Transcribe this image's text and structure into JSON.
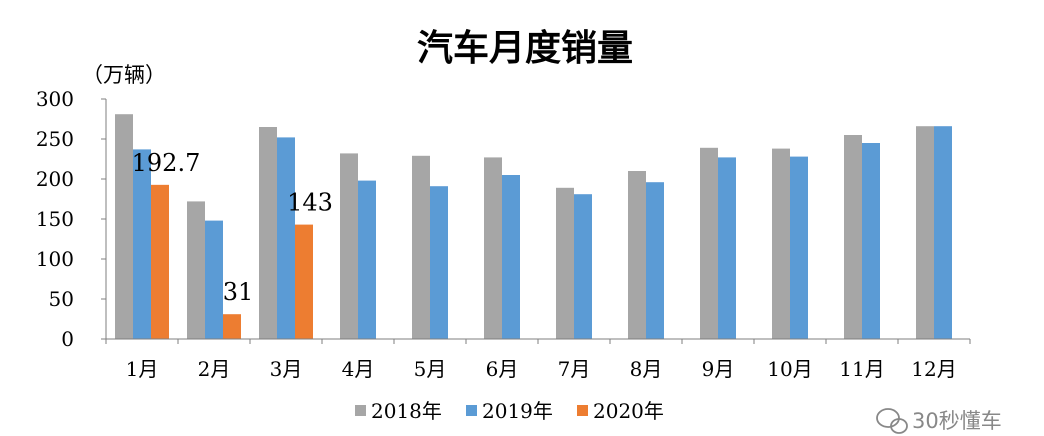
{
  "chart_data": {
    "type": "bar",
    "title": "汽车月度销量",
    "unit_label": "（万辆）",
    "categories": [
      "1月",
      "2月",
      "3月",
      "4月",
      "5月",
      "6月",
      "7月",
      "8月",
      "9月",
      "10月",
      "11月",
      "12月"
    ],
    "series": [
      {
        "name": "2018年",
        "color": "#a6a6a6",
        "values": [
          281,
          172,
          265,
          232,
          229,
          227,
          189,
          210,
          239,
          238,
          255,
          266
        ]
      },
      {
        "name": "2019年",
        "color": "#5b9bd5",
        "values": [
          237,
          148,
          252,
          198,
          191,
          205,
          181,
          196,
          227,
          228,
          245,
          266
        ]
      },
      {
        "name": "2020年",
        "color": "#ed7d31",
        "values": [
          192.7,
          31,
          143,
          null,
          null,
          null,
          null,
          null,
          null,
          null,
          null,
          null
        ]
      }
    ],
    "data_labels": [
      {
        "series": 2,
        "index": 0,
        "text": "192.7"
      },
      {
        "series": 2,
        "index": 1,
        "text": "31"
      },
      {
        "series": 2,
        "index": 2,
        "text": "143"
      }
    ],
    "ylim": [
      0,
      300
    ],
    "yticks": [
      0,
      50,
      100,
      150,
      200,
      250,
      300
    ],
    "grid": false,
    "legend_position": "bottom"
  },
  "watermark": {
    "icon": "wechat-icon",
    "text": "30秒懂车"
  }
}
